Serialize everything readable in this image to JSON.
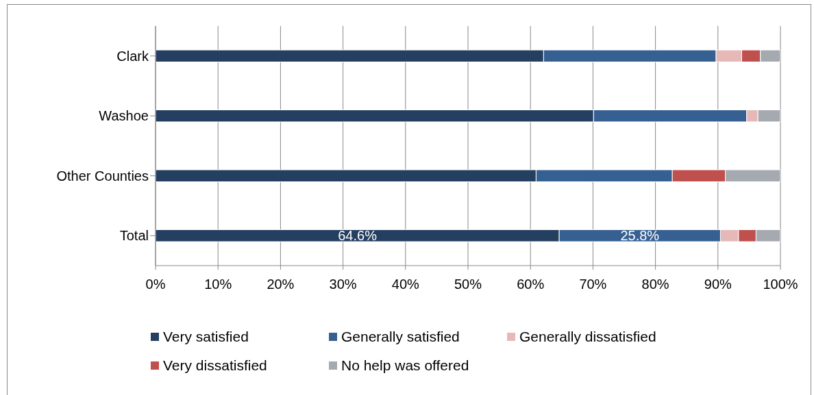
{
  "chart_data": {
    "type": "bar",
    "orientation": "horizontal",
    "stacked": true,
    "categories": [
      "Clark",
      "Washoe",
      "Other Counties",
      "Total"
    ],
    "series": [
      {
        "name": "Very satisfied",
        "color": "#243f60",
        "values": [
          62.1,
          70.1,
          60.9,
          64.6
        ],
        "value_labels": [
          null,
          null,
          null,
          "64.6%"
        ]
      },
      {
        "name": "Generally satisfied",
        "color": "#366092",
        "values": [
          27.6,
          24.5,
          21.8,
          25.8
        ],
        "value_labels": [
          null,
          null,
          null,
          "25.8%"
        ]
      },
      {
        "name": "Generally dissatisfied",
        "color": "#e6b9b8",
        "values": [
          4.1,
          1.8,
          0,
          2.9
        ]
      },
      {
        "name": "Very dissatisfied",
        "color": "#c0504d",
        "values": [
          3.0,
          0,
          8.5,
          2.8
        ]
      },
      {
        "name": "No help was offered",
        "color": "#a5a9b0",
        "values": [
          3.2,
          3.6,
          8.8,
          3.9
        ]
      }
    ],
    "xlim": [
      0,
      100
    ],
    "xticks": [
      {
        "value": 0,
        "label": "0%"
      },
      {
        "value": 10,
        "label": "10%"
      },
      {
        "value": 20,
        "label": "20%"
      },
      {
        "value": 30,
        "label": "30%"
      },
      {
        "value": 40,
        "label": "40%"
      },
      {
        "value": 50,
        "label": "50%"
      },
      {
        "value": 60,
        "label": "60%"
      },
      {
        "value": 70,
        "label": "70%"
      },
      {
        "value": 80,
        "label": "80%"
      },
      {
        "value": 90,
        "label": "90%"
      },
      {
        "value": 100,
        "label": "100%"
      }
    ],
    "grid": "x",
    "legend": "bottom"
  }
}
